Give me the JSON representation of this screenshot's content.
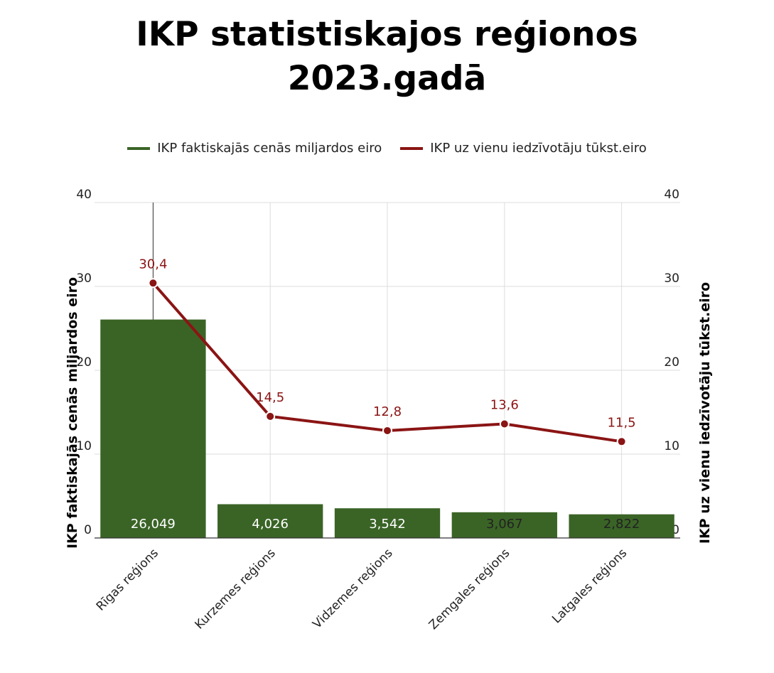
{
  "title_line1": "IKP statistiskajos reģionos",
  "title_line2": "2023.gadā",
  "colors": {
    "bar": "#3a6426",
    "line": "#8b1414",
    "grid": "#dddddd"
  },
  "chart_data": {
    "type": "bar+line",
    "title": "IKP statistiskajos reģionos 2023.gadā",
    "categories": [
      "Rīgas reģions",
      "Kurzemes reģions",
      "Vidzemes reģions",
      "Zemgales reģions",
      "Latgales reģions"
    ],
    "series": [
      {
        "name": "IKP faktiskajās cenās miljardos eiro",
        "type": "bar",
        "axis": "left",
        "values": [
          26.049,
          4.026,
          3.542,
          3.067,
          2.822
        ],
        "labels": [
          "26,049",
          "4,026",
          "3,542",
          "3,067",
          "2,822"
        ],
        "label_colors": [
          "#ffffff",
          "#ffffff",
          "#ffffff",
          "#222222",
          "#222222"
        ]
      },
      {
        "name": "IKP uz vienu iedzīvotāju tūkst.eiro",
        "type": "line",
        "axis": "right",
        "values": [
          30.4,
          14.5,
          12.8,
          13.6,
          11.5
        ],
        "labels": [
          "30,4",
          "14,5",
          "12,8",
          "13,6",
          "11,5"
        ]
      }
    ],
    "ylabel_left": "IKP faktiskajās cenās miljardos eiro",
    "ylabel_right": "IKP uz vienu iedzīvotāju tūkst.eiro",
    "ylim_left": [
      0,
      40
    ],
    "ylim_right": [
      0,
      40
    ],
    "yticks": [
      0,
      10,
      20,
      30,
      40
    ],
    "grid": true,
    "legend_position": "top-center"
  }
}
